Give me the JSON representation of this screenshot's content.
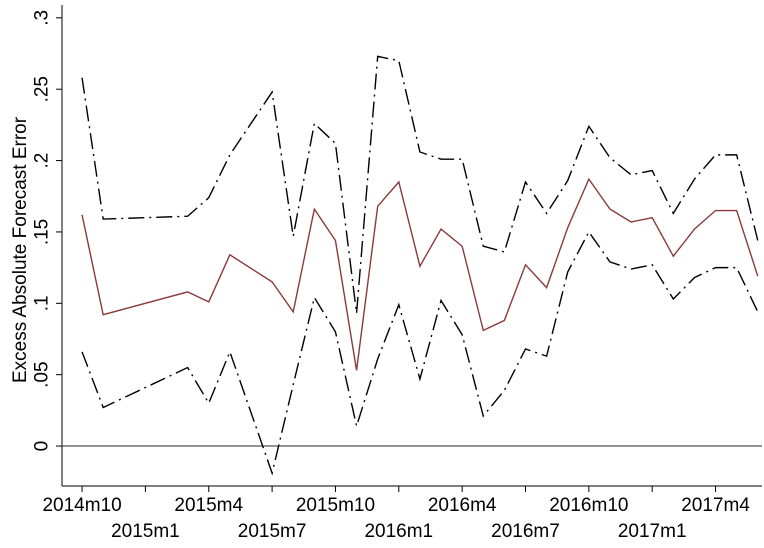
{
  "chart_data": {
    "type": "line",
    "y_label": "Excess Absolute Forecast Error",
    "x": [
      657,
      658,
      662,
      663,
      664,
      666,
      667,
      668,
      669,
      670,
      671,
      672,
      673,
      674,
      675,
      676,
      677,
      678,
      679,
      680,
      681,
      682,
      683,
      684,
      685,
      686,
      687,
      688,
      689
    ],
    "series": [
      {
        "color": "#8b3a3a",
        "dash": "solid",
        "values": [
          0.162,
          0.092,
          0.108,
          0.101,
          0.134,
          0.115,
          0.094,
          0.166,
          0.144,
          0.053,
          0.168,
          0.185,
          0.126,
          0.152,
          0.14,
          0.081,
          0.088,
          0.127,
          0.111,
          0.153,
          0.187,
          0.166,
          0.157,
          0.16,
          0.133,
          0.152,
          0.165,
          0.165,
          0.119
        ]
      },
      {
        "color": "#000000",
        "dash": "dash-dot",
        "values": [
          0.258,
          0.159,
          0.161,
          0.174,
          0.204,
          0.248,
          0.147,
          0.226,
          0.212,
          0.093,
          0.273,
          0.27,
          0.206,
          0.201,
          0.201,
          0.14,
          0.136,
          0.185,
          0.163,
          0.186,
          0.224,
          0.202,
          0.19,
          0.193,
          0.163,
          0.187,
          0.204,
          0.204,
          0.144
        ]
      },
      {
        "color": "#000000",
        "dash": "dash-dot",
        "values": [
          0.066,
          0.027,
          0.055,
          0.03,
          0.066,
          -0.019,
          0.043,
          0.104,
          0.08,
          0.014,
          0.061,
          0.099,
          0.047,
          0.102,
          0.078,
          0.021,
          0.039,
          0.068,
          0.063,
          0.122,
          0.15,
          0.129,
          0.124,
          0.127,
          0.103,
          0.118,
          0.125,
          0.125,
          0.094
        ]
      }
    ],
    "xlim": [
      656.05,
      689.2
    ],
    "xticks": [
      {
        "value": 657,
        "label": "2014m10"
      },
      {
        "value": 660,
        "label": "2015m1"
      },
      {
        "value": 663,
        "label": "2015m4"
      },
      {
        "value": 666,
        "label": "2015m7"
      },
      {
        "value": 669,
        "label": "2015m10"
      },
      {
        "value": 672,
        "label": "2016m1"
      },
      {
        "value": 675,
        "label": "2016m4"
      },
      {
        "value": 678,
        "label": "2016m7"
      },
      {
        "value": 681,
        "label": "2016m10"
      },
      {
        "value": 684,
        "label": "2017m1"
      },
      {
        "value": 687,
        "label": "2017m4"
      }
    ],
    "ylim": [
      -0.028,
      0.309
    ],
    "yticks": [
      0,
      {
        "value": 0.05,
        "label": ".05"
      },
      {
        "value": 0.1,
        "label": ".1"
      },
      {
        "value": 0.15,
        "label": ".15"
      },
      {
        "value": 0.2,
        "label": ".2"
      },
      {
        "value": 0.25,
        "label": ".25"
      },
      {
        "value": 0.3,
        "label": ".3"
      }
    ],
    "reference_line": 0,
    "grid": false
  }
}
